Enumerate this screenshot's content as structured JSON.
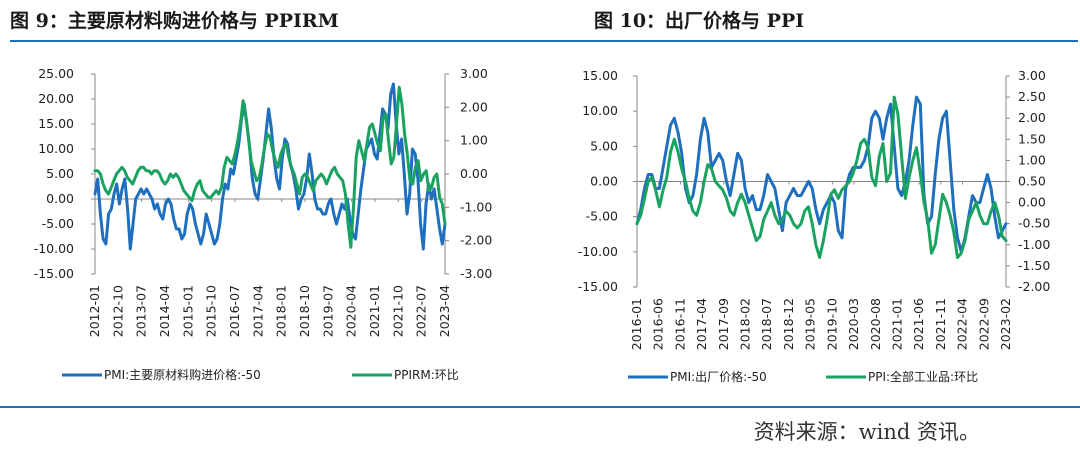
{
  "source": "资料来源：wind 资讯。",
  "colors": {
    "blue": "#1f6fbf",
    "green": "#1aa360",
    "axis": "#888888"
  },
  "chart_data": [
    {
      "type": "line",
      "title": "图 9：主要原材料购进价格与 PPIRM",
      "x_ticks": [
        "2012-01",
        "2012-10",
        "2013-07",
        "2014-04",
        "2015-01",
        "2015-10",
        "2016-07",
        "2017-04",
        "2018-01",
        "2018-10",
        "2019-07",
        "2020-04",
        "2021-01",
        "2021-10",
        "2022-07",
        "2023-04"
      ],
      "y_left": {
        "range": [
          -15,
          25
        ],
        "ticks": [
          "25.00",
          "20.00",
          "15.00",
          "10.00",
          "5.00",
          "0.00",
          "-5.00",
          "-10.00",
          "-15.00"
        ]
      },
      "y_right": {
        "range": [
          -3,
          3
        ],
        "ticks": [
          "3.00",
          "2.00",
          "1.00",
          "0.00",
          "-1.00",
          "-2.00",
          "-3.00"
        ]
      },
      "series": [
        {
          "name": "PMI:主要原材料购进价格:-50",
          "axis": "left",
          "color": "blue",
          "values": [
            1,
            4,
            -3,
            -8,
            -9,
            -3,
            -2,
            1,
            3,
            -1,
            2,
            4,
            -2,
            -10,
            -5,
            0,
            1,
            2,
            1,
            2,
            1,
            0,
            -2,
            -1,
            -3,
            -4,
            -1,
            0,
            -1,
            -4,
            -6,
            -6,
            -8,
            -7,
            -3,
            -1,
            -2,
            -5,
            -7,
            -9,
            -7,
            -3,
            -5,
            -7,
            -9,
            -8,
            -5,
            0,
            3,
            2,
            6,
            5,
            8,
            11,
            16,
            19,
            15,
            10,
            4,
            1,
            0,
            4,
            8,
            13,
            18,
            14,
            8,
            4,
            2,
            8,
            12,
            11,
            7,
            5,
            2,
            -2,
            0,
            1,
            4,
            9,
            5,
            0,
            -2,
            -2,
            -3,
            -3,
            -1,
            0,
            -3,
            -5,
            -3,
            -1,
            -2,
            0,
            -4,
            -7,
            -8,
            -3,
            2,
            6,
            10,
            11,
            12,
            9,
            8,
            13,
            18,
            17,
            14,
            21,
            23,
            15,
            9,
            12,
            5,
            -3,
            1,
            10,
            9,
            4,
            -5,
            -10,
            -1,
            3,
            0,
            2,
            -2,
            -6,
            -9,
            -5
          ]
        },
        {
          "name": "PPIRM:环比",
          "axis": "right",
          "color": "green",
          "values": [
            0.1,
            0.1,
            0.0,
            -0.3,
            -0.5,
            -0.6,
            -0.4,
            -0.2,
            0.0,
            0.1,
            0.2,
            0.1,
            -0.1,
            -0.2,
            -0.3,
            -0.1,
            0.1,
            0.2,
            0.2,
            0.1,
            0.1,
            0.0,
            0.1,
            0.1,
            0.0,
            -0.2,
            -0.3,
            -0.2,
            0.0,
            -0.1,
            0.0,
            -0.1,
            -0.3,
            -0.5,
            -0.6,
            -0.7,
            -0.8,
            -0.5,
            -0.3,
            -0.2,
            -0.5,
            -0.6,
            -0.7,
            -0.7,
            -0.6,
            -0.5,
            -0.6,
            -0.4,
            0.2,
            0.5,
            0.4,
            0.3,
            0.6,
            1.0,
            1.5,
            2.2,
            1.7,
            1.1,
            0.4,
            0.1,
            -0.2,
            -0.1,
            0.3,
            0.8,
            1.2,
            1.1,
            0.7,
            0.4,
            0.2,
            0.6,
            0.8,
            0.9,
            0.5,
            0.2,
            0.0,
            -0.3,
            -0.6,
            -0.1,
            0.0,
            -0.1,
            -0.3,
            -0.5,
            -0.2,
            -0.1,
            0.0,
            -0.1,
            -0.3,
            -0.1,
            0.1,
            0.2,
            0.0,
            -0.1,
            -0.2,
            -0.6,
            -1.5,
            -2.2,
            -1.0,
            0.5,
            1.0,
            0.7,
            0.4,
            0.9,
            1.4,
            1.5,
            1.2,
            0.9,
            0.7,
            1.7,
            1.8,
            1.0,
            0.3,
            0.5,
            1.5,
            2.6,
            2.1,
            1.2,
            0.6,
            -0.2,
            -0.3,
            0.2,
            0.4,
            -0.2,
            0.0,
            0.1,
            -0.5,
            -0.4,
            -0.1,
            0.0,
            -0.7,
            -0.9,
            -1.5
          ]
        }
      ]
    },
    {
      "type": "line",
      "title": "图 10：出厂价格与 PPI",
      "x_ticks": [
        "2016-01",
        "2016-06",
        "2016-11",
        "2017-04",
        "2017-09",
        "2018-02",
        "2018-07",
        "2018-12",
        "2019-05",
        "2019-10",
        "2020-03",
        "2020-08",
        "2021-01",
        "2021-06",
        "2021-11",
        "2022-04",
        "2022-09",
        "2023-02"
      ],
      "y_left": {
        "range": [
          -15,
          15
        ],
        "ticks": [
          "15.00",
          "10.00",
          "5.00",
          "0.00",
          "-5.00",
          "-10.00",
          "-15.00"
        ]
      },
      "y_right": {
        "range": [
          -2,
          3
        ],
        "ticks": [
          "3.00",
          "2.50",
          "2.00",
          "1.50",
          "1.00",
          "0.50",
          "0.00",
          "-0.50",
          "-1.00",
          "-1.50",
          "-2.00"
        ]
      },
      "series": [
        {
          "name": "PMI:出厂价格:-50",
          "axis": "left",
          "color": "blue",
          "values": [
            -6,
            -4,
            -1,
            1,
            1,
            -1,
            -1,
            2,
            5,
            8,
            9,
            7,
            4,
            -1,
            -3,
            -2,
            1,
            6,
            9,
            7,
            2,
            3,
            4,
            3,
            0,
            -2,
            1,
            4,
            3,
            -1,
            -3,
            -2,
            -4,
            -4,
            -2,
            1,
            0,
            -1,
            -4,
            -7,
            -3,
            -2,
            -1,
            -2,
            -2,
            -1,
            0,
            -1,
            -4,
            -6,
            -4,
            -3,
            -2,
            -3,
            -7,
            -8,
            -1,
            1,
            2,
            2,
            2,
            3,
            5,
            9,
            10,
            9,
            6,
            9,
            11,
            5,
            -1,
            -2,
            0,
            3,
            8,
            12,
            11,
            -2,
            -6,
            -5,
            1,
            6,
            9,
            10,
            3,
            -4,
            -8,
            -10,
            -8,
            -5,
            -2,
            -3,
            -3,
            -1,
            1,
            -1,
            -5,
            -8,
            -7,
            -6
          ]
        },
        {
          "name": "PPI:全部工业品:环比",
          "axis": "right",
          "color": "green",
          "values": [
            -0.5,
            -0.3,
            0.1,
            0.5,
            0.6,
            0.3,
            -0.1,
            0.3,
            0.6,
            1.2,
            1.5,
            1.2,
            0.8,
            0.5,
            0.1,
            -0.2,
            -0.3,
            0.0,
            0.5,
            0.9,
            0.8,
            0.5,
            0.4,
            0.3,
            0.1,
            -0.2,
            -0.3,
            0.0,
            0.2,
            0.0,
            -0.3,
            -0.6,
            -0.9,
            -0.8,
            -0.4,
            -0.2,
            0.0,
            -0.3,
            -0.5,
            -0.4,
            -0.2,
            -0.3,
            -0.5,
            -0.6,
            -0.5,
            -0.2,
            -0.1,
            -0.5,
            -1.0,
            -1.3,
            -0.9,
            -0.4,
            0.2,
            0.3,
            0.1,
            0.3,
            0.4,
            0.5,
            0.7,
            1.0,
            1.4,
            1.5,
            1.3,
            0.6,
            0.4,
            1.1,
            1.4,
            0.5,
            0.7,
            2.5,
            2.1,
            1.1,
            0.1,
            0.6,
            1.0,
            1.3,
            0.7,
            0.0,
            -0.4,
            -1.2,
            -1.0,
            -0.4,
            0.2,
            0.0,
            -0.3,
            -0.7,
            -1.3,
            -1.2,
            -0.9,
            -0.4,
            -0.2,
            0.0,
            -0.3,
            -0.5,
            -0.5,
            -0.2,
            0.0,
            -0.3,
            -0.8,
            -0.9
          ]
        }
      ]
    }
  ]
}
